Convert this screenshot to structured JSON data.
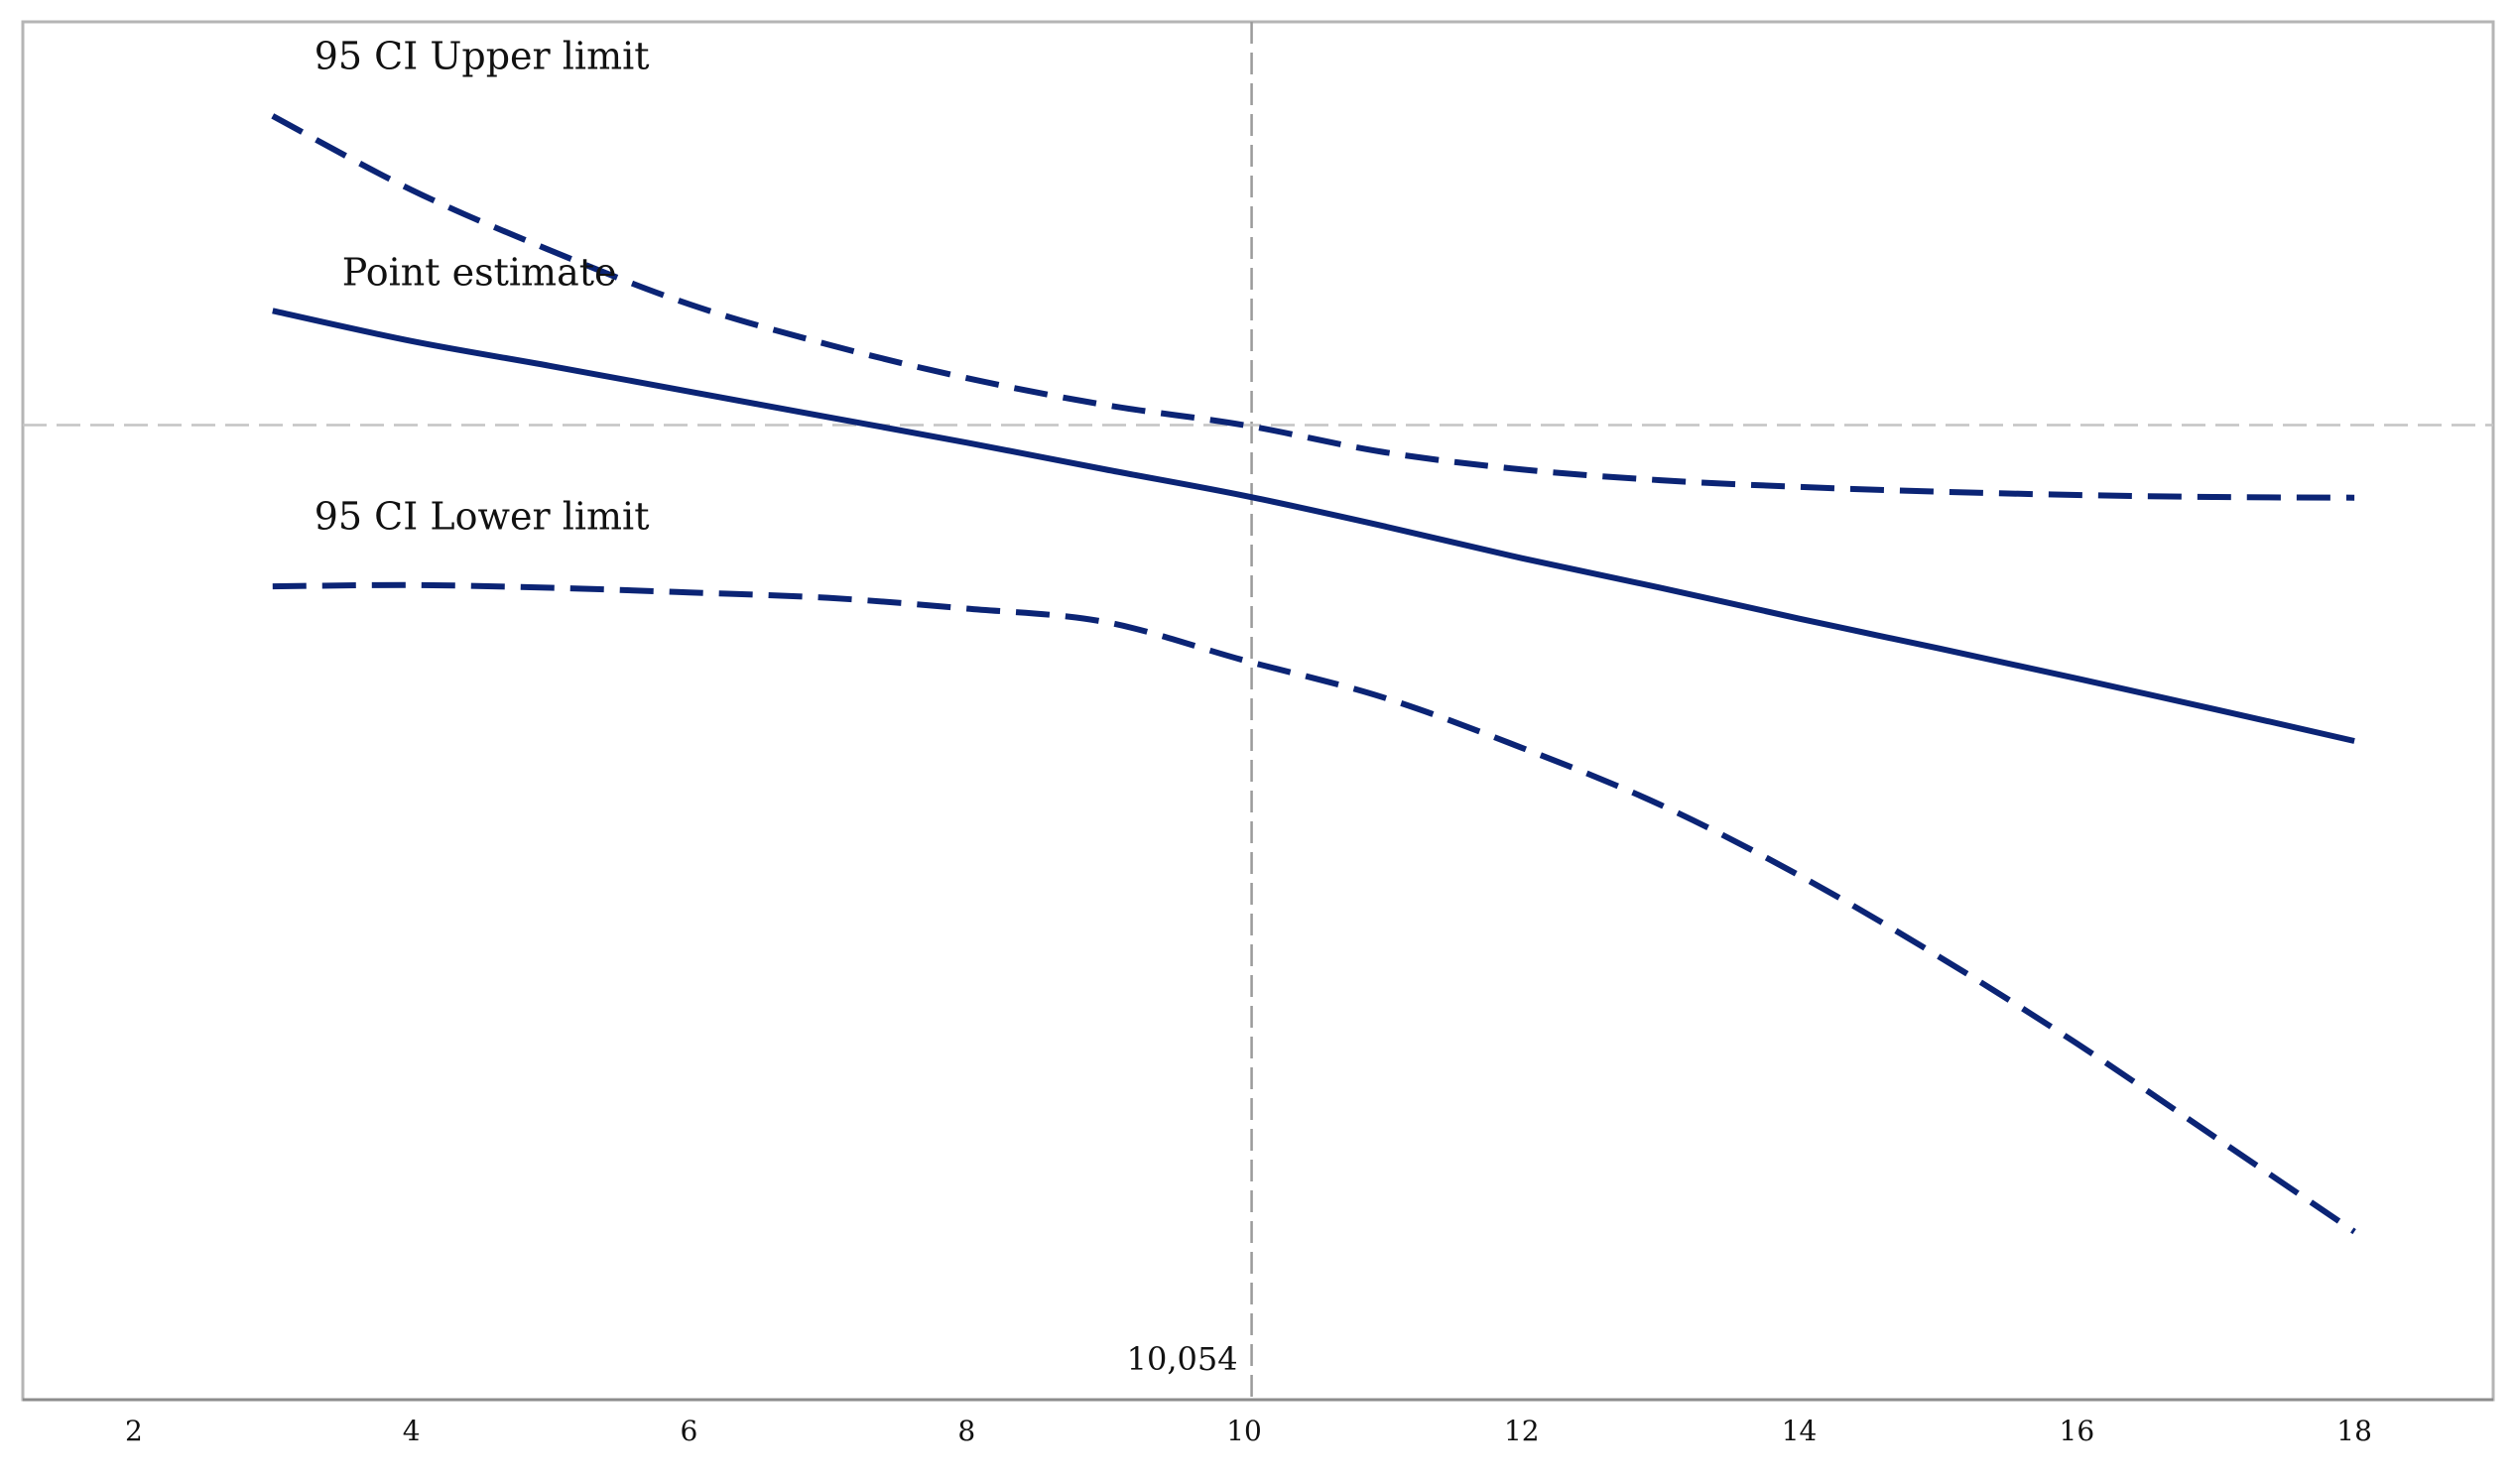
{
  "chart_data": {
    "type": "line",
    "title": "",
    "xlabel": "",
    "ylabel": "",
    "xlim": [
      1.2,
      19.0
    ],
    "ylim": [
      -1.45,
      0.6
    ],
    "x_ticks": [
      2,
      4,
      6,
      8,
      10,
      12,
      14,
      16,
      18
    ],
    "y_ticks": [],
    "grid": false,
    "legend": "none",
    "reference_lines": {
      "vertical_x": 10.054,
      "vertical_label": "10,054",
      "horizontal_y": 0
    },
    "colors": {
      "series": "#0b2475",
      "reference": "#9a9a9a",
      "frame": "#b5b5b5"
    },
    "series": [
      {
        "name": "95 CI Upper limit",
        "style": "dashed",
        "x": [
          3,
          4,
          5,
          6,
          7,
          8,
          9,
          10,
          11,
          12,
          13,
          14,
          15,
          16,
          17,
          18
        ],
        "y": [
          0.46,
          0.35,
          0.26,
          0.18,
          0.12,
          0.07,
          0.03,
          0.0,
          -0.04,
          -0.066,
          -0.082,
          -0.092,
          -0.099,
          -0.104,
          -0.107,
          -0.108
        ]
      },
      {
        "name": "Point estimate",
        "style": "solid",
        "x": [
          3,
          4,
          5,
          6,
          7,
          8,
          9,
          10,
          11,
          12,
          13,
          14,
          15,
          16,
          17,
          18
        ],
        "y": [
          0.17,
          0.125,
          0.088,
          0.05,
          0.012,
          -0.026,
          -0.066,
          -0.105,
          -0.15,
          -0.198,
          -0.242,
          -0.288,
          -0.332,
          -0.377,
          -0.423,
          -0.47
        ]
      },
      {
        "name": "95 CI Lower limit",
        "style": "dashed",
        "x": [
          3,
          4,
          5,
          6,
          7,
          8,
          9,
          10,
          11,
          12,
          13,
          14,
          15,
          16,
          17,
          18
        ],
        "y": [
          -0.24,
          -0.238,
          -0.242,
          -0.249,
          -0.257,
          -0.273,
          -0.293,
          -0.35,
          -0.405,
          -0.48,
          -0.565,
          -0.67,
          -0.79,
          -0.92,
          -1.06,
          -1.2
        ]
      }
    ],
    "annotations": [
      {
        "text": "95 CI Upper limit",
        "x": 3.3,
        "y": 0.53
      },
      {
        "text": "Point estimate",
        "x": 3.5,
        "y": 0.208
      },
      {
        "text": "95 CI Lower limit",
        "x": 3.3,
        "y": -0.155
      }
    ]
  }
}
